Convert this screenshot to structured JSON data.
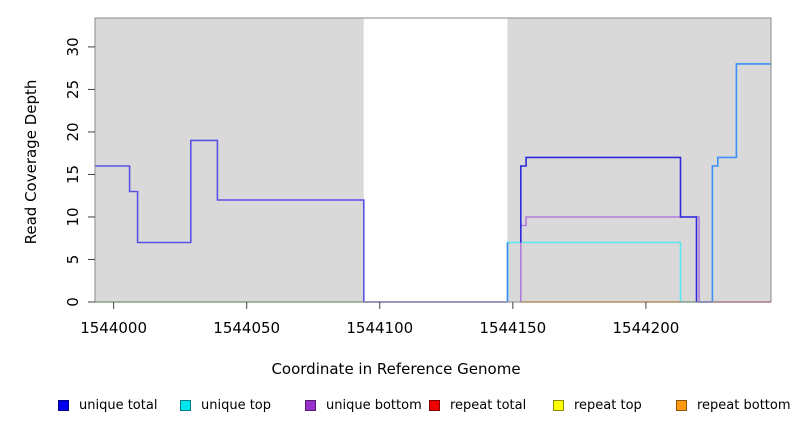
{
  "figure": {
    "xlabel": "Coordinate in Reference Genome",
    "ylabel": "Read Coverage Depth"
  },
  "legend": {
    "items": [
      {
        "label": "unique total",
        "color": "#0000EE"
      },
      {
        "label": "unique top",
        "color": "#00E5EE"
      },
      {
        "label": "unique bottom",
        "color": "#9932CC"
      },
      {
        "label": "repeat total",
        "color": "#EE0000"
      },
      {
        "label": "repeat top",
        "color": "#FFFF00"
      },
      {
        "label": "repeat bottom",
        "color": "#FF9912"
      }
    ]
  },
  "colors": {
    "panel_shading": "#D9D9D9",
    "panel_unshaded": "#FFFFFF",
    "panel_border": "#8A8A8A",
    "tick": "#3F3F3F",
    "text": "#000000"
  },
  "chart_data": {
    "type": "line",
    "step": true,
    "title": "",
    "xlabel": "Coordinate in Reference Genome",
    "ylabel": "Read Coverage Depth",
    "xlim": [
      1543993,
      1544247
    ],
    "ylim": [
      0,
      33.4
    ],
    "x_ticks": [
      1544000,
      1544050,
      1544100,
      1544150,
      1544200
    ],
    "y_ticks": [
      0,
      5,
      10,
      15,
      20,
      25,
      30
    ],
    "grid": false,
    "legend_position": "bottom",
    "panel_background_regions": [
      {
        "name": "shaded-left",
        "x1": 1543993,
        "x2": 1544094,
        "color": "#D9D9D9"
      },
      {
        "name": "unshaded-middle",
        "x1": 1544094,
        "x2": 1544148,
        "color": "#FFFFFF"
      },
      {
        "name": "shaded-right",
        "x1": 1544148,
        "x2": 1544247,
        "color": "#D9D9D9"
      }
    ],
    "zero_line_segments": [
      {
        "name": "overlap-green-left",
        "color": "#8FCA8F",
        "x1": 1543993,
        "x2": 1544094
      },
      {
        "name": "unique-total-zero-gap",
        "color": "#5A51E8",
        "x1": 1544094,
        "x2": 1544148
      },
      {
        "name": "repeat-bottom-zero",
        "color": "#FFA018",
        "x1": 1544153,
        "x2": 1544213
      },
      {
        "name": "overlap-green-right",
        "color": "#8FCA8F",
        "x1": 1544213,
        "x2": 1544219
      },
      {
        "name": "unique-total-zero-right",
        "color": "#4A42E0",
        "x1": 1544219,
        "x2": 1544225
      },
      {
        "name": "repeat-total-zero-right",
        "color": "#D85C87",
        "x1": 1544225,
        "x2": 1544247
      }
    ],
    "series": [
      {
        "name": "unique-top",
        "legend": "unique top",
        "color": "#5CE6EE",
        "points": [
          [
            1544148,
            0
          ],
          [
            1544148,
            7
          ],
          [
            1544213,
            7
          ],
          [
            1544213,
            0
          ]
        ]
      },
      {
        "name": "unique-top-rise-overlap",
        "legend": "unique top + unique total",
        "color": "#3E8EF7",
        "points": [
          [
            1544148,
            0
          ],
          [
            1544148,
            7
          ]
        ]
      },
      {
        "name": "unique-bottom",
        "legend": "unique bottom",
        "color": "#B27CD9",
        "points": [
          [
            1544153,
            0
          ],
          [
            1544153,
            9
          ],
          [
            1544155,
            9
          ],
          [
            1544155,
            10
          ],
          [
            1544220,
            10
          ],
          [
            1544220,
            0
          ]
        ]
      },
      {
        "name": "unique-total-left",
        "legend": "unique total",
        "color": "#5A51E8",
        "points": [
          [
            1543993,
            16
          ],
          [
            1544006,
            16
          ],
          [
            1544006,
            13
          ],
          [
            1544009,
            13
          ],
          [
            1544009,
            7
          ],
          [
            1544029,
            7
          ],
          [
            1544029,
            19
          ],
          [
            1544039,
            19
          ],
          [
            1544039,
            12
          ],
          [
            1544094,
            12
          ],
          [
            1544094,
            0
          ]
        ]
      },
      {
        "name": "unique-total-right",
        "legend": "unique total",
        "color": "#2F2BDC",
        "points": [
          [
            1544153,
            7
          ],
          [
            1544153,
            16
          ],
          [
            1544155,
            16
          ],
          [
            1544155,
            17
          ],
          [
            1544213,
            17
          ],
          [
            1544213,
            10
          ],
          [
            1544219,
            10
          ],
          [
            1544219,
            0
          ]
        ]
      },
      {
        "name": "unique-total-far-right-overlap",
        "legend": "unique total + unique top",
        "color": "#3E8EF7",
        "points": [
          [
            1544225,
            0
          ],
          [
            1544225,
            16
          ],
          [
            1544227,
            16
          ],
          [
            1544227,
            17
          ],
          [
            1544234,
            17
          ],
          [
            1544234,
            28
          ],
          [
            1544247,
            28
          ]
        ]
      }
    ]
  }
}
